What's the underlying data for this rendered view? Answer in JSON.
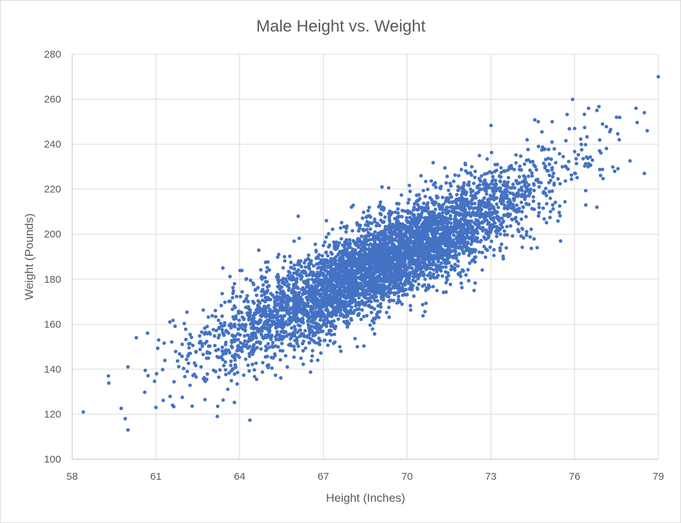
{
  "chart_data": {
    "type": "scatter",
    "title": "Male Height vs. Weight",
    "xlabel": "Height (Inches)",
    "ylabel": "Weight (Pounds)",
    "xlim": [
      58,
      79
    ],
    "ylim": [
      100,
      280
    ],
    "x_ticks": [
      58,
      61,
      64,
      67,
      70,
      73,
      76,
      79
    ],
    "y_ticks": [
      100,
      120,
      140,
      160,
      180,
      200,
      220,
      240,
      260,
      280
    ],
    "grid": true,
    "legend": "none",
    "series_color": "#4472C4",
    "series": [
      {
        "name": "Weight",
        "n_points": 5000,
        "x_mean": 69.03,
        "x_sd": 2.86,
        "y_intercept": -224.5,
        "y_slope": 5.96,
        "y_residual_sd": 10.1,
        "outliers": [
          {
            "x": 58.4,
            "y": 121
          },
          {
            "x": 59.3,
            "y": 137
          },
          {
            "x": 59.9,
            "y": 118
          },
          {
            "x": 60.0,
            "y": 113
          },
          {
            "x": 60.0,
            "y": 141
          },
          {
            "x": 60.3,
            "y": 154
          },
          {
            "x": 60.7,
            "y": 156
          },
          {
            "x": 61.0,
            "y": 123
          },
          {
            "x": 61.1,
            "y": 153
          },
          {
            "x": 61.6,
            "y": 124
          },
          {
            "x": 61.5,
            "y": 161
          },
          {
            "x": 63.2,
            "y": 119
          },
          {
            "x": 63.4,
            "y": 185
          },
          {
            "x": 65.4,
            "y": 191
          },
          {
            "x": 66.1,
            "y": 208
          },
          {
            "x": 66.8,
            "y": 144
          },
          {
            "x": 69.1,
            "y": 221
          },
          {
            "x": 70.5,
            "y": 226
          },
          {
            "x": 72.4,
            "y": 175
          },
          {
            "x": 74.7,
            "y": 250
          },
          {
            "x": 75.2,
            "y": 250
          },
          {
            "x": 75.5,
            "y": 197
          },
          {
            "x": 76.0,
            "y": 247
          },
          {
            "x": 76.5,
            "y": 256
          },
          {
            "x": 76.8,
            "y": 255
          },
          {
            "x": 77.0,
            "y": 249
          },
          {
            "x": 77.5,
            "y": 252
          },
          {
            "x": 77.6,
            "y": 242
          },
          {
            "x": 78.2,
            "y": 256
          },
          {
            "x": 78.5,
            "y": 254
          },
          {
            "x": 78.6,
            "y": 246
          },
          {
            "x": 78.5,
            "y": 227
          },
          {
            "x": 76.8,
            "y": 212
          },
          {
            "x": 76.4,
            "y": 213
          },
          {
            "x": 79.0,
            "y": 270
          }
        ]
      }
    ]
  }
}
